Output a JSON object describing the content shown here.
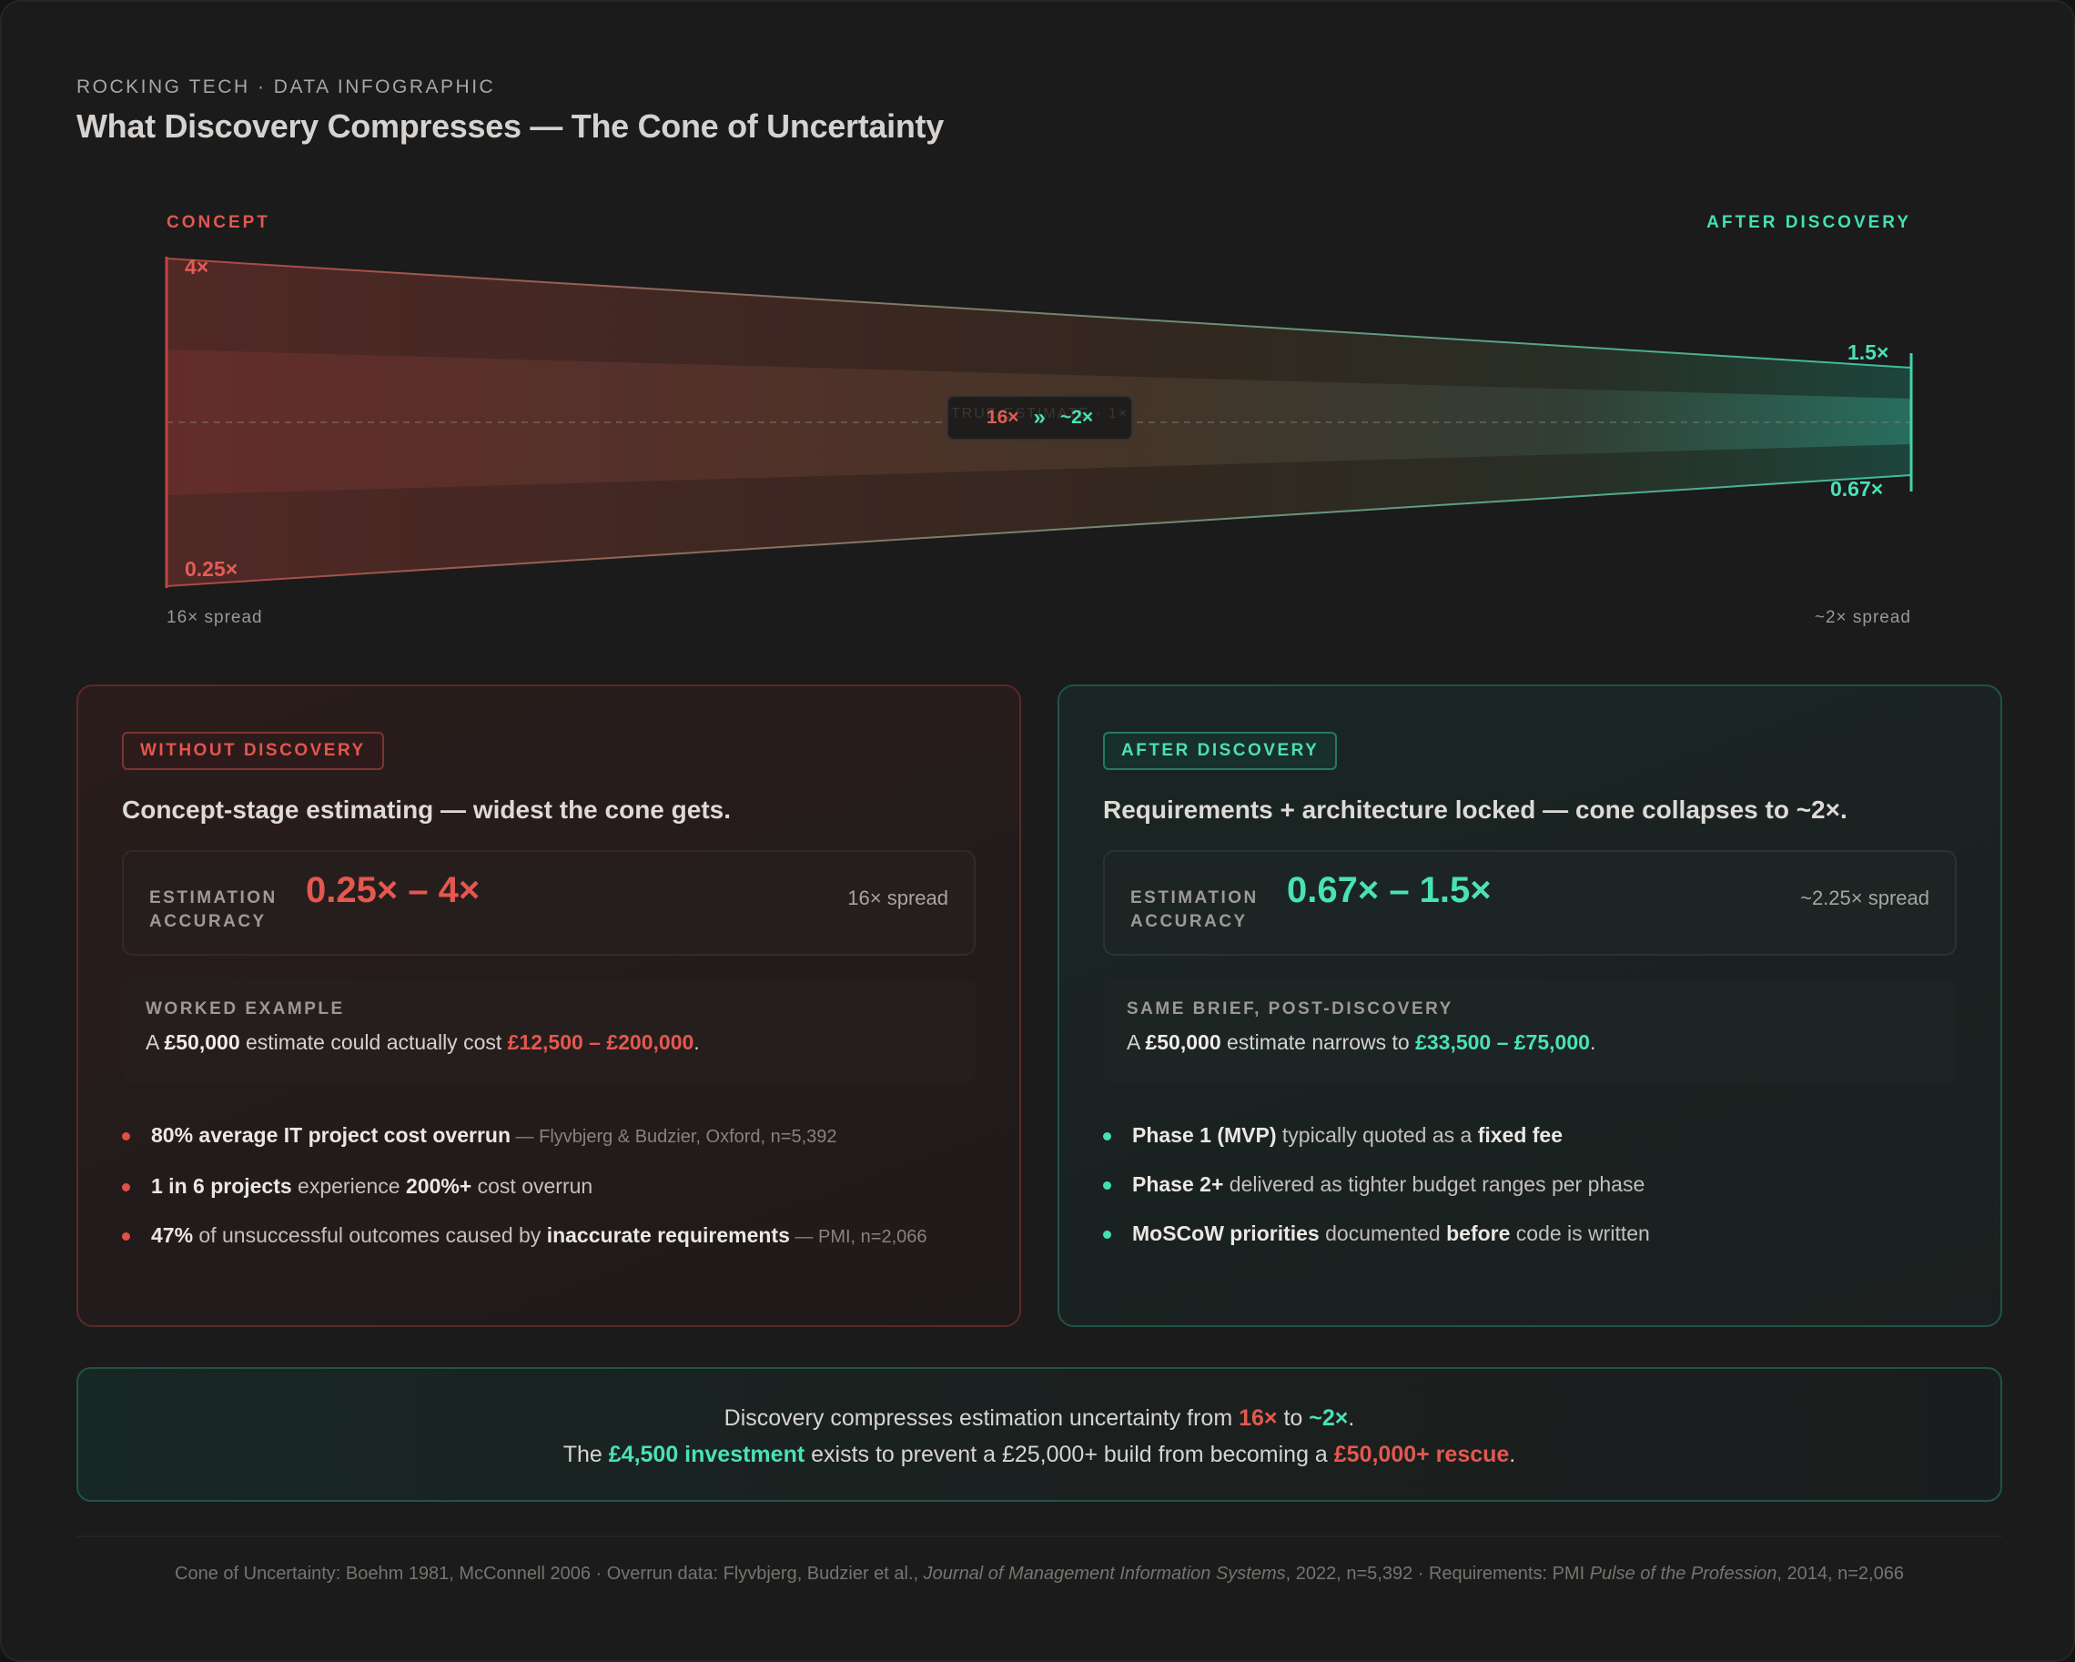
{
  "header": {
    "eyebrow": "ROCKING TECH · DATA INFOGRAPHIC",
    "title": "What Discovery Compresses — The Cone of Uncertainty"
  },
  "cone": {
    "left_label": "CONCEPT",
    "right_label": "AFTER DISCOVERY",
    "left_upper": "4×",
    "left_lower": "0.25×",
    "right_upper": "1.5×",
    "right_lower": "0.67×",
    "left_spread": "16× spread",
    "right_spread": "~2× spread",
    "center_ghost": "TRUE ESTIMATE · 1×",
    "center_from": "16×",
    "center_arrow": "»",
    "center_to": "~2×",
    "colors": {
      "red": "#e25d55",
      "green": "#49e2b6"
    }
  },
  "without": {
    "tag": "WITHOUT DISCOVERY",
    "headline": "Concept-stage estimating — widest the cone gets.",
    "accuracy_label_1": "ESTIMATION",
    "accuracy_label_2": "ACCURACY",
    "accuracy_range": "0.25× – 4×",
    "accuracy_spread": "16× spread",
    "example_label": "WORKED EXAMPLE",
    "example": {
      "pre": "A ",
      "amount": "£50,000",
      "mid": " estimate could actually cost ",
      "range": "£12,500 – £200,000",
      "post": "."
    },
    "bullets": [
      {
        "bold": "80% average IT project cost overrun",
        "text": "",
        "src": " — Flyvbjerg & Budzier, Oxford, n=5,392"
      },
      {
        "bold": "1 in 6 projects",
        "text": " experience ",
        "bold2": "200%+",
        "text2": " cost overrun"
      },
      {
        "bold": "47%",
        "text": " of unsuccessful outcomes caused by ",
        "bold2": "inaccurate requirements",
        "src": " — PMI, n=2,066"
      }
    ]
  },
  "after": {
    "tag": "AFTER DISCOVERY",
    "headline": "Requirements + architecture locked — cone collapses to ~2×.",
    "accuracy_label_1": "ESTIMATION",
    "accuracy_label_2": "ACCURACY",
    "accuracy_range": "0.67× – 1.5×",
    "accuracy_spread": "~2.25× spread",
    "example_label": "SAME BRIEF, POST-DISCOVERY",
    "example": {
      "pre": "A ",
      "amount": "£50,000",
      "mid": " estimate narrows to ",
      "range": "£33,500 – £75,000",
      "post": "."
    },
    "bullets": [
      {
        "bold": "Phase 1 (MVP)",
        "text": " typically quoted as a ",
        "bold2": "fixed fee"
      },
      {
        "bold": "Phase 2+",
        "text": " delivered as tighter budget ranges per phase"
      },
      {
        "bold": "MoSCoW priorities",
        "text": " documented ",
        "bold2": "before",
        "text2": " code is written"
      }
    ]
  },
  "summary": {
    "l1_pre": "Discovery compresses estimation uncertainty from ",
    "l1_from": "16×",
    "l1_mid": " to ",
    "l1_to": "~2×",
    "l1_post": ".",
    "l2_pre": "The ",
    "l2_invest": "£4,500 investment",
    "l2_mid": " exists to prevent a £25,000+ build from becoming a ",
    "l2_rescue": "£50,000+ rescue",
    "l2_post": "."
  },
  "footer": {
    "p1": "Cone of Uncertainty: Boehm 1981, McConnell 2006 · Overrun data: Flyvbjerg, Budzier et al., ",
    "i1": "Journal of Management Information Systems",
    "p2": ", 2022, n=5,392 · Requirements: PMI ",
    "i2": "Pulse of the Profession",
    "p3": ", 2014, n=2,066"
  }
}
